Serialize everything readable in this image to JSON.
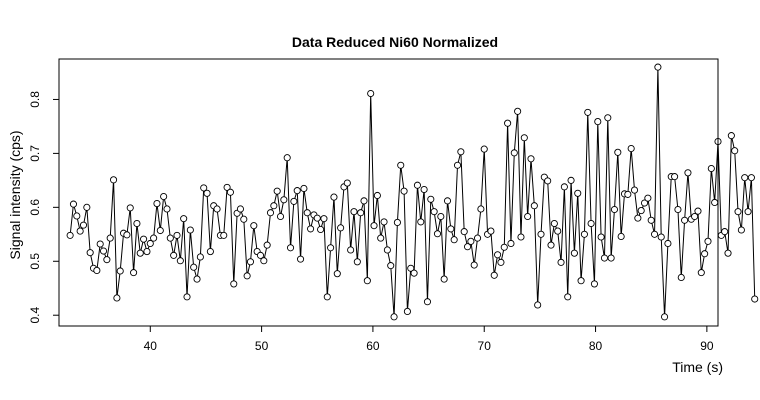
{
  "chart_data": {
    "type": "line",
    "title": "Data Reduced Ni60 Normalized",
    "xlabel": "Time (s)",
    "ylabel": "Signal intensity (cps)",
    "xlim": [
      31.8,
      91.0
    ],
    "ylim": [
      0.38,
      0.875
    ],
    "x_ticks": [
      40,
      50,
      60,
      70,
      80,
      90
    ],
    "y_ticks": [
      0.4,
      0.5,
      0.6,
      0.7,
      0.8
    ],
    "markers": "open-circle",
    "grid": false,
    "series": [
      {
        "x_start": 32.8,
        "x_step": 0.3,
        "values": [
          0.548,
          0.606,
          0.584,
          0.556,
          0.567,
          0.6,
          0.516,
          0.487,
          0.483,
          0.532,
          0.519,
          0.503,
          0.543,
          0.651,
          0.432,
          0.482,
          0.552,
          0.549,
          0.599,
          0.479,
          0.57,
          0.515,
          0.541,
          0.518,
          0.533,
          0.543,
          0.607,
          0.557,
          0.62,
          0.597,
          0.543,
          0.511,
          0.548,
          0.501,
          0.579,
          0.434,
          0.558,
          0.489,
          0.467,
          0.508,
          0.636,
          0.626,
          0.518,
          0.603,
          0.597,
          0.548,
          0.548,
          0.637,
          0.628,
          0.458,
          0.589,
          0.597,
          0.578,
          0.473,
          0.499,
          0.566,
          0.518,
          0.511,
          0.501,
          0.53,
          0.59,
          0.603,
          0.63,
          0.583,
          0.614,
          0.692,
          0.525,
          0.611,
          0.631,
          0.504,
          0.635,
          0.59,
          0.56,
          0.586,
          0.58,
          0.559,
          0.579,
          0.434,
          0.525,
          0.619,
          0.477,
          0.562,
          0.638,
          0.645,
          0.521,
          0.592,
          0.499,
          0.59,
          0.612,
          0.464,
          0.811,
          0.566,
          0.622,
          0.543,
          0.573,
          0.521,
          0.492,
          0.397,
          0.572,
          0.678,
          0.63,
          0.407,
          0.487,
          0.478,
          0.641,
          0.573,
          0.633,
          0.425,
          0.615,
          0.592,
          0.551,
          0.583,
          0.467,
          0.612,
          0.56,
          0.54,
          0.678,
          0.703,
          0.555,
          0.527,
          0.537,
          0.493,
          0.543,
          0.597,
          0.708,
          0.55,
          0.556,
          0.474,
          0.512,
          0.498,
          0.526,
          0.756,
          0.533,
          0.701,
          0.778,
          0.545,
          0.729,
          0.583,
          0.69,
          0.603,
          0.419,
          0.55,
          0.656,
          0.649,
          0.53,
          0.57,
          0.556,
          0.498,
          0.638,
          0.434,
          0.65,
          0.515,
          0.626,
          0.464,
          0.55,
          0.776,
          0.57,
          0.458,
          0.759,
          0.545,
          0.506,
          0.766,
          0.506,
          0.596,
          0.702,
          0.546,
          0.625,
          0.624,
          0.709,
          0.632,
          0.58,
          0.594,
          0.608,
          0.617,
          0.576,
          0.55,
          0.86,
          0.545,
          0.397,
          0.533,
          0.657,
          0.657,
          0.596,
          0.47,
          0.576,
          0.664,
          0.578,
          0.583,
          0.593,
          0.479,
          0.514,
          0.537,
          0.672,
          0.609,
          0.722,
          0.548,
          0.555,
          0.515,
          0.733,
          0.705,
          0.592,
          0.558,
          0.655,
          0.592,
          0.655,
          0.43
        ]
      }
    ]
  }
}
